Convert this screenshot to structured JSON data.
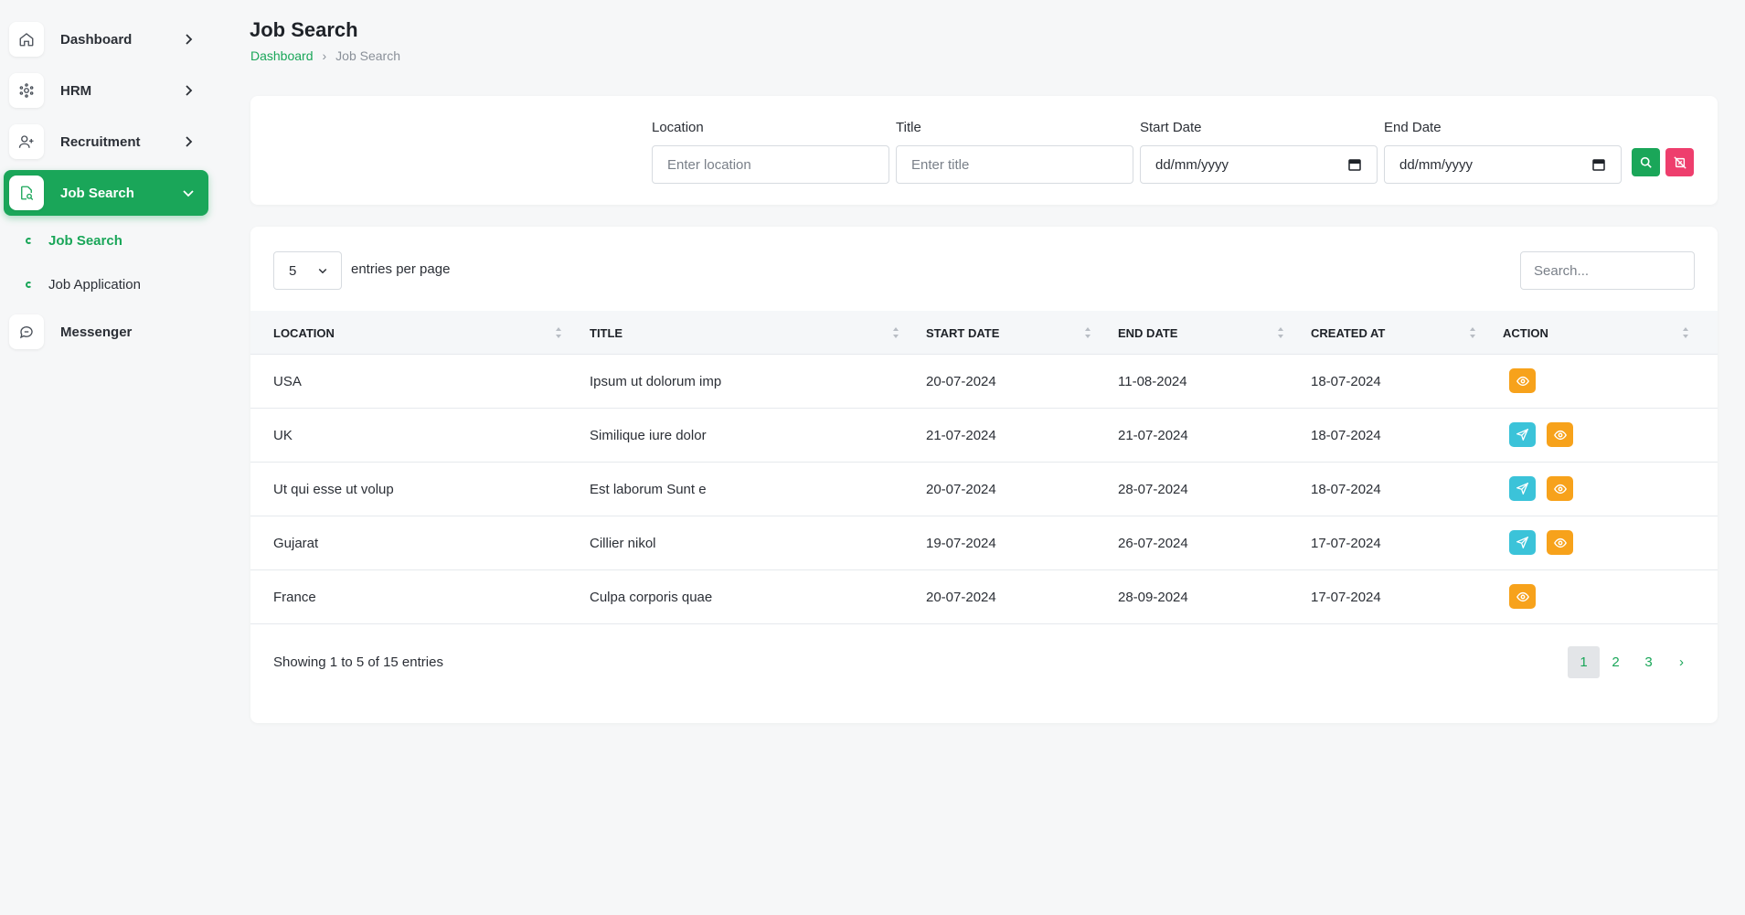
{
  "sidebar": {
    "items": [
      {
        "label": "Dashboard",
        "icon": "home-icon"
      },
      {
        "label": "HRM",
        "icon": "hrm-icon"
      },
      {
        "label": "Recruitment",
        "icon": "user-plus-icon"
      },
      {
        "label": "Job Search",
        "icon": "file-search-icon"
      },
      {
        "label": "Messenger",
        "icon": "chat-icon"
      }
    ],
    "subitems": [
      {
        "label": "Job Search"
      },
      {
        "label": "Job Application"
      }
    ]
  },
  "header": {
    "title": "Job Search",
    "breadcrumb": {
      "home": "Dashboard",
      "current": "Job Search"
    }
  },
  "filters": {
    "location": {
      "label": "Location",
      "placeholder": "Enter location"
    },
    "title": {
      "label": "Title",
      "placeholder": "Enter title"
    },
    "start_date": {
      "label": "Start Date",
      "value": "dd/mm/yyyy"
    },
    "end_date": {
      "label": "End Date",
      "value": "dd/mm/yyyy"
    }
  },
  "table": {
    "per_page_value": "5",
    "per_page_text": "entries per page",
    "search_placeholder": "Search...",
    "columns": [
      "LOCATION",
      "TITLE",
      "START DATE",
      "END DATE",
      "CREATED AT",
      "ACTION"
    ],
    "rows": [
      {
        "location": "USA",
        "title": "Ipsum ut dolorum imp",
        "start": "20-07-2024",
        "end": "11-08-2024",
        "created": "18-07-2024"
      },
      {
        "location": "UK",
        "title": "Similique iure dolor",
        "start": "21-07-2024",
        "end": "21-07-2024",
        "created": "18-07-2024"
      },
      {
        "location": "Ut qui esse ut volup",
        "title": "Est laborum Sunt e",
        "start": "20-07-2024",
        "end": "28-07-2024",
        "created": "18-07-2024"
      },
      {
        "location": "Gujarat",
        "title": "Cillier nikol",
        "start": "19-07-2024",
        "end": "26-07-2024",
        "created": "17-07-2024"
      },
      {
        "location": "France",
        "title": "Culpa corporis quae",
        "start": "20-07-2024",
        "end": "28-09-2024",
        "created": "17-07-2024"
      }
    ],
    "showing": "Showing 1 to 5 of 15 entries",
    "pages": [
      "1",
      "2",
      "3",
      "›"
    ]
  },
  "colors": {
    "accent": "#1aa659",
    "danger": "#ee3e6d",
    "view": "#f7a21b",
    "apply": "#3bc3d9"
  }
}
